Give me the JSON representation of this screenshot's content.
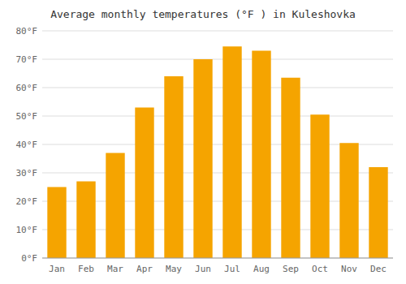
{
  "chart_data": {
    "type": "bar",
    "title": "Average monthly temperatures (°F ) in Kuleshovka",
    "categories": [
      "Jan",
      "Feb",
      "Mar",
      "Apr",
      "May",
      "Jun",
      "Jul",
      "Aug",
      "Sep",
      "Oct",
      "Nov",
      "Dec"
    ],
    "values": [
      25,
      27,
      37,
      53,
      64,
      70,
      74.5,
      73,
      63.5,
      50.5,
      40.5,
      32
    ],
    "color": "#F5A400",
    "ylim": [
      0,
      80
    ],
    "yticks": [
      {
        "value": 0,
        "label": "0°F"
      },
      {
        "value": 10,
        "label": "10°F"
      },
      {
        "value": 20,
        "label": "20°F"
      },
      {
        "value": 30,
        "label": "30°F"
      },
      {
        "value": 40,
        "label": "40°F"
      },
      {
        "value": 50,
        "label": "50°F"
      },
      {
        "value": 60,
        "label": "60°F"
      },
      {
        "value": 70,
        "label": "70°F"
      },
      {
        "value": 80,
        "label": "80°F"
      }
    ],
    "grid": true
  }
}
